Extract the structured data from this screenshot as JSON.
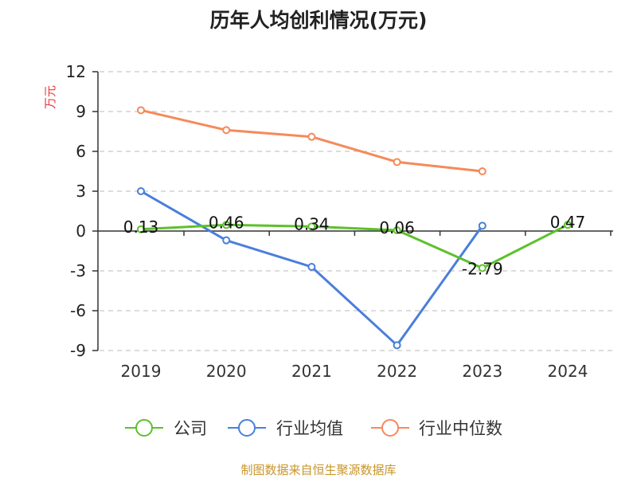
{
  "chart_data": {
    "type": "line",
    "title": "历年人均创利情况(万元)",
    "ylabel": "万元",
    "xlabel": "",
    "categories": [
      "2019",
      "2020",
      "2021",
      "2022",
      "2023",
      "2024"
    ],
    "ylim": [
      -9,
      12
    ],
    "yticks": [
      12,
      9,
      6,
      3,
      0,
      -3,
      -6,
      -9
    ],
    "grid": true,
    "legend_position": "bottom",
    "series": [
      {
        "name": "公司",
        "color": "#5cc12b",
        "values": [
          0.13,
          0.46,
          0.34,
          0.06,
          -2.79,
          0.47
        ],
        "data_labels": [
          "0.13",
          "0.46",
          "0.34",
          "0.06",
          "-2.79",
          "0.47"
        ]
      },
      {
        "name": "行业均值",
        "color": "#4a7fdb",
        "values": [
          3.0,
          -0.7,
          -2.7,
          -8.6,
          0.4,
          null
        ]
      },
      {
        "name": "行业中位数",
        "color": "#f58a5a",
        "values": [
          9.1,
          7.6,
          7.1,
          5.2,
          4.5,
          null
        ]
      }
    ]
  },
  "footer": {
    "source": "制图数据来自恒生聚源数据库"
  }
}
